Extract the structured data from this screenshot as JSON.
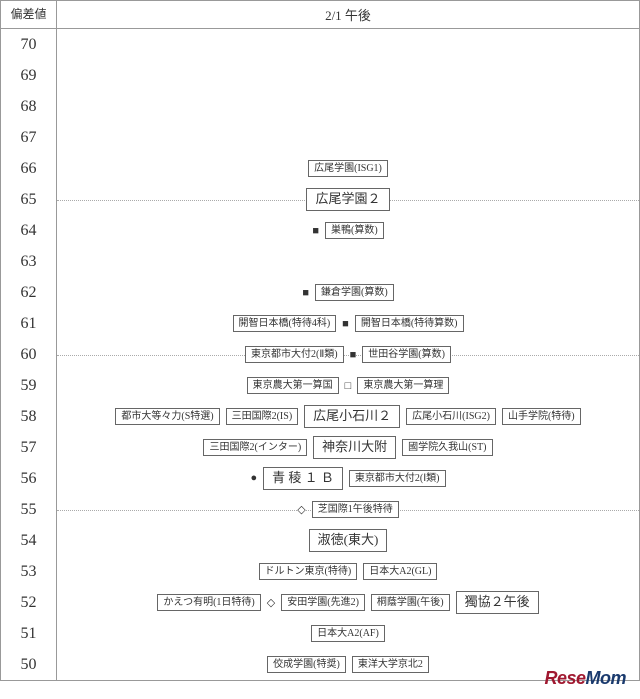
{
  "header": {
    "left": "偏差値",
    "right": "2/1 午後"
  },
  "marks": {
    "black_square": "■",
    "white_square": "□",
    "diamond": "◇",
    "circle": "●"
  },
  "colors": {
    "border": "#999999",
    "text": "#333333",
    "dot": "#aaaaaa",
    "bg": "#ffffff"
  },
  "rows": [
    {
      "v": "70",
      "items": []
    },
    {
      "v": "69",
      "items": []
    },
    {
      "v": "68",
      "items": []
    },
    {
      "v": "67",
      "items": []
    },
    {
      "v": "66",
      "items": [
        {
          "t": "box",
          "label": "広尾学園(ISG1)"
        }
      ]
    },
    {
      "v": "65",
      "dotted": true,
      "items": [
        {
          "t": "box",
          "hl": true,
          "label": "広尾学園２"
        }
      ]
    },
    {
      "v": "64",
      "items": [
        {
          "t": "mark",
          "m": "black_square"
        },
        {
          "t": "box",
          "label": "巣鴨(算数)"
        }
      ]
    },
    {
      "v": "63",
      "items": []
    },
    {
      "v": "62",
      "items": [
        {
          "t": "mark",
          "m": "black_square"
        },
        {
          "t": "box",
          "label": "鎌倉学園(算数)"
        }
      ]
    },
    {
      "v": "61",
      "items": [
        {
          "t": "box",
          "label": "開智日本橋(特待4科)"
        },
        {
          "t": "mark",
          "m": "black_square"
        },
        {
          "t": "box",
          "label": "開智日本橋(特待算数)"
        }
      ]
    },
    {
      "v": "60",
      "dotted": true,
      "items": [
        {
          "t": "box",
          "label": "東京都市大付2(Ⅱ類)"
        },
        {
          "t": "mark",
          "m": "black_square"
        },
        {
          "t": "box",
          "label": "世田谷学園(算数)"
        }
      ]
    },
    {
      "v": "59",
      "items": [
        {
          "t": "box",
          "label": "東京農大第一算国"
        },
        {
          "t": "mark",
          "m": "white_square"
        },
        {
          "t": "box",
          "label": "東京農大第一算理"
        }
      ]
    },
    {
      "v": "58",
      "items": [
        {
          "t": "box",
          "label": "都市大等々力(S特選)"
        },
        {
          "t": "box",
          "label": "三田国際2(IS)"
        },
        {
          "t": "box",
          "hl": true,
          "label": "広尾小石川２"
        },
        {
          "t": "box",
          "label": "広尾小石川(ISG2)"
        },
        {
          "t": "box",
          "label": "山手学院(特待)"
        }
      ]
    },
    {
      "v": "57",
      "items": [
        {
          "t": "box",
          "label": "三田国際2(インター)"
        },
        {
          "t": "box",
          "hl": true,
          "label": "神奈川大附"
        },
        {
          "t": "box",
          "label": "國学院久我山(ST)"
        }
      ]
    },
    {
      "v": "56",
      "items": [
        {
          "t": "mark",
          "m": "circle"
        },
        {
          "t": "box",
          "hl": true,
          "label": "青 稜 １ Ｂ"
        },
        {
          "t": "box",
          "label": "東京都市大付2(Ⅰ類)"
        }
      ]
    },
    {
      "v": "55",
      "dotted": true,
      "items": [
        {
          "t": "mark",
          "m": "diamond"
        },
        {
          "t": "box",
          "label": "芝国際1午後特待"
        }
      ]
    },
    {
      "v": "54",
      "items": [
        {
          "t": "box",
          "hl": true,
          "label": "淑徳(東大)"
        }
      ]
    },
    {
      "v": "53",
      "items": [
        {
          "t": "box",
          "label": "ドルトン東京(特待)"
        },
        {
          "t": "box",
          "label": "日本大A2(GL)"
        }
      ]
    },
    {
      "v": "52",
      "items": [
        {
          "t": "box",
          "label": "かえつ有明(1日特待)"
        },
        {
          "t": "mark",
          "m": "diamond"
        },
        {
          "t": "box",
          "label": "安田学園(先進2)"
        },
        {
          "t": "box",
          "label": "桐蔭学園(午後)"
        },
        {
          "t": "box",
          "hl": true,
          "label": "獨協２午後"
        }
      ]
    },
    {
      "v": "51",
      "items": [
        {
          "t": "box",
          "label": "日本大A2(AF)"
        }
      ]
    },
    {
      "v": "50",
      "items": [
        {
          "t": "box",
          "label": "佼成学園(特奨)"
        },
        {
          "t": "box",
          "label": "東洋大学京北2"
        }
      ]
    }
  ],
  "watermark": {
    "a": "Rese",
    "b": "Mom"
  }
}
